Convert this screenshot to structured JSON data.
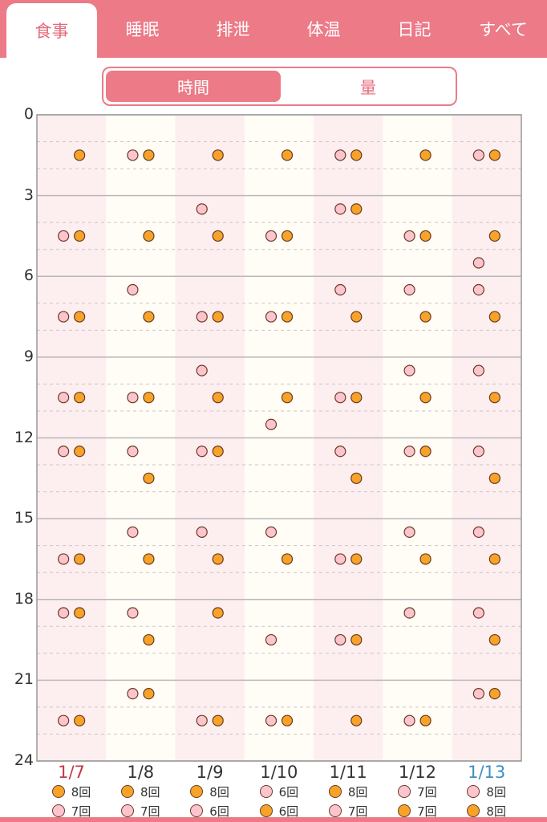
{
  "tabs": [
    {
      "label": "食事",
      "active": true
    },
    {
      "label": "睡眠",
      "active": false
    },
    {
      "label": "排泄",
      "active": false
    },
    {
      "label": "体温",
      "active": false
    },
    {
      "label": "日記",
      "active": false
    },
    {
      "label": "すべて",
      "active": false
    }
  ],
  "segment": {
    "time_label": "時間",
    "amount_label": "量",
    "selected": "時間"
  },
  "colors": {
    "accent": "#ec7a87",
    "pink_dot": "#fbc4cf",
    "orange_dot": "#f7a329",
    "dot_border": "#6b3a1e",
    "sat_color": "#c0394b",
    "sun_color": "#3b8fc4",
    "col_pink": "#fdeef0",
    "col_cream": "#fffdf5"
  },
  "chart_data": {
    "type": "scatter",
    "y_ticks": [
      "0",
      "3",
      "6",
      "9",
      "12",
      "15",
      "18",
      "21",
      "24"
    ],
    "ylim": [
      0,
      24
    ],
    "days": [
      {
        "label": "1/7",
        "weekday": "sat",
        "pink": [
          4.5,
          7.5,
          10.5,
          12.5,
          16.5,
          18.5,
          22.5
        ],
        "orange": [
          1.5,
          4.5,
          7.5,
          10.5,
          12.5,
          16.5,
          18.5,
          22.5
        ],
        "legend": [
          {
            "dot": "orange",
            "text": "8回"
          },
          {
            "dot": "pink",
            "text": "7回"
          }
        ]
      },
      {
        "label": "1/8",
        "weekday": "",
        "pink": [
          1.5,
          6.5,
          10.5,
          12.5,
          15.5,
          18.5,
          21.5
        ],
        "orange": [
          1.5,
          4.5,
          7.5,
          10.5,
          13.5,
          16.5,
          19.5,
          21.5
        ],
        "legend": [
          {
            "dot": "orange",
            "text": "8回"
          },
          {
            "dot": "pink",
            "text": "7回"
          }
        ]
      },
      {
        "label": "1/9",
        "weekday": "",
        "pink": [
          3.5,
          7.5,
          9.5,
          12.5,
          15.5,
          22.5
        ],
        "orange": [
          1.5,
          4.5,
          7.5,
          10.5,
          12.5,
          16.5,
          18.5,
          22.5
        ],
        "legend": [
          {
            "dot": "orange",
            "text": "8回"
          },
          {
            "dot": "pink",
            "text": "6回"
          }
        ]
      },
      {
        "label": "1/10",
        "weekday": "",
        "pink": [
          4.5,
          7.5,
          11.5,
          15.5,
          19.5,
          22.5
        ],
        "orange": [
          1.5,
          4.5,
          7.5,
          10.5,
          16.5,
          22.5
        ],
        "legend": [
          {
            "dot": "pink",
            "text": "6回"
          },
          {
            "dot": "orange",
            "text": "6回"
          }
        ]
      },
      {
        "label": "1/11",
        "weekday": "",
        "pink": [
          1.5,
          3.5,
          6.5,
          10.5,
          12.5,
          16.5,
          19.5
        ],
        "orange": [
          1.5,
          3.5,
          7.5,
          10.5,
          13.5,
          16.5,
          19.5,
          22.5
        ],
        "legend": [
          {
            "dot": "orange",
            "text": "8回"
          },
          {
            "dot": "pink",
            "text": "7回"
          }
        ]
      },
      {
        "label": "1/12",
        "weekday": "",
        "pink": [
          4.5,
          6.5,
          9.5,
          12.5,
          15.5,
          18.5,
          22.5
        ],
        "orange": [
          1.5,
          4.5,
          7.5,
          10.5,
          12.5,
          16.5,
          22.5
        ],
        "legend": [
          {
            "dot": "pink",
            "text": "7回"
          },
          {
            "dot": "orange",
            "text": "7回"
          }
        ]
      },
      {
        "label": "1/13",
        "weekday": "sun",
        "pink": [
          1.5,
          5.5,
          6.5,
          9.5,
          12.5,
          15.5,
          18.5,
          21.5
        ],
        "orange": [
          1.5,
          4.5,
          7.5,
          10.5,
          13.5,
          16.5,
          19.5,
          21.5
        ],
        "legend": [
          {
            "dot": "pink",
            "text": "8回"
          },
          {
            "dot": "orange",
            "text": "8回"
          }
        ]
      }
    ]
  }
}
